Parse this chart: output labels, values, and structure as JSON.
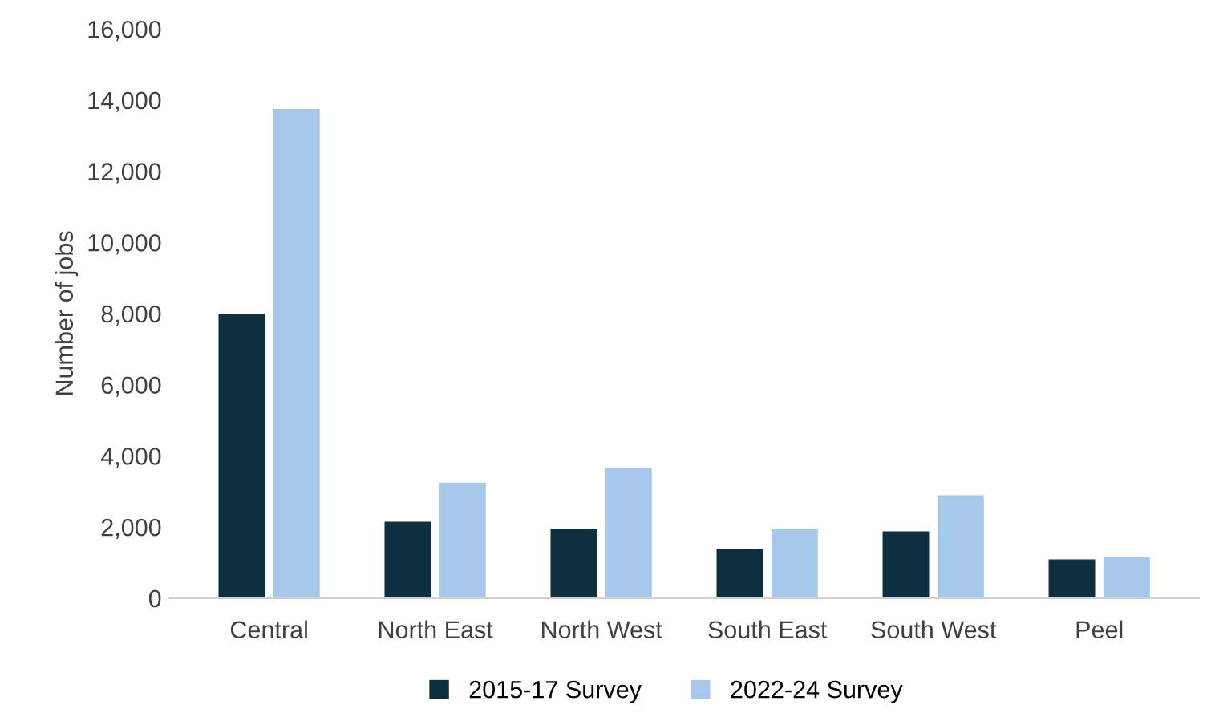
{
  "chart_data": {
    "type": "bar",
    "categories": [
      "Central",
      "North East",
      "North West",
      "South East",
      "South West",
      "Peel"
    ],
    "series": [
      {
        "name": "2015-17 Survey",
        "color": "#0d2f40",
        "values": [
          8000,
          2150,
          1950,
          1380,
          1880,
          1090
        ]
      },
      {
        "name": "2022-24 Survey",
        "color": "#a6c9eb",
        "values": [
          13750,
          3250,
          3650,
          1950,
          2890,
          1160
        ]
      }
    ],
    "ylabel": "Number of jobs",
    "ylim": [
      0,
      16000
    ],
    "yticks": [
      {
        "value": 0,
        "label": "0"
      },
      {
        "value": 2000,
        "label": "2,000"
      },
      {
        "value": 4000,
        "label": "4,000"
      },
      {
        "value": 6000,
        "label": "6,000"
      },
      {
        "value": 8000,
        "label": "8,000"
      },
      {
        "value": 10000,
        "label": "10,000"
      },
      {
        "value": 12000,
        "label": "12,000"
      },
      {
        "value": 14000,
        "label": "14,000"
      },
      {
        "value": 16000,
        "label": "16,000"
      }
    ],
    "grid": false,
    "legend": "bottom"
  }
}
